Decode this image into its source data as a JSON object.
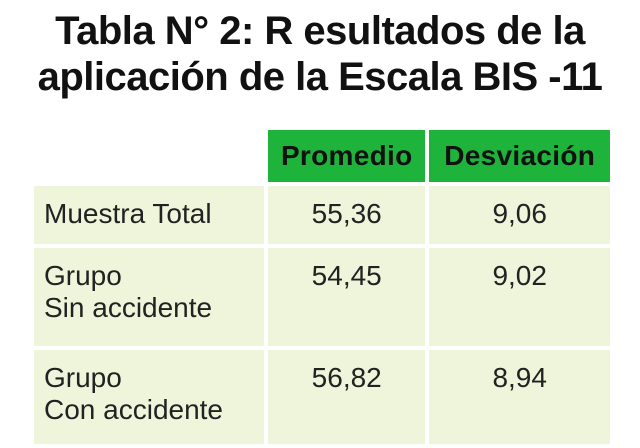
{
  "title": {
    "line1": "Tabla N° 2: R esultados de la",
    "line2": "aplicación de la Escala BIS -11"
  },
  "table": {
    "headers": [
      "Promedio",
      "Desviación"
    ],
    "rows": [
      {
        "label_lines": [
          "Muestra Total"
        ],
        "promedio": "55,36",
        "desviacion": "9,06"
      },
      {
        "label_lines": [
          "Grupo",
          "Sin accidente"
        ],
        "promedio": "54,45",
        "desviacion": "9,02"
      },
      {
        "label_lines": [
          "Grupo",
          "Con accidente"
        ],
        "promedio": "56,82",
        "desviacion": "8,94"
      }
    ]
  },
  "colors": {
    "header_bg": "#1eb33b",
    "cell_bg": "#eef5db"
  }
}
